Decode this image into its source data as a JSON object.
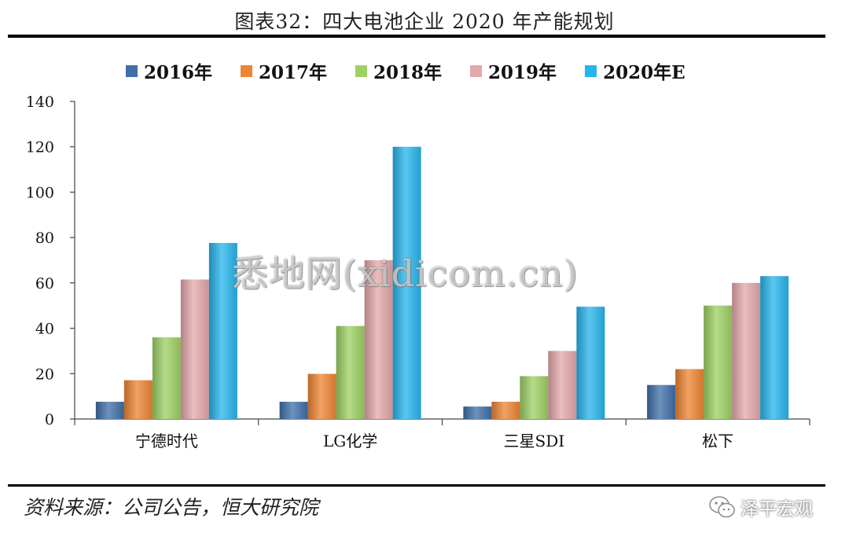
{
  "figure": {
    "title": "图表32：四大电池企业 2020 年产能规划",
    "source": "资料来源：公司公告，恒大研究院",
    "watermark": "悉地网(xidicom.cn)",
    "brand": "泽平宏观"
  },
  "chart_data": {
    "type": "bar",
    "categories": [
      "宁德时代",
      "LG化学",
      "三星SDI",
      "松下"
    ],
    "series": [
      {
        "name": "2016年",
        "values": [
          7.6,
          7.6,
          5.5,
          15
        ],
        "color": "#3f6fa8"
      },
      {
        "name": "2017年",
        "values": [
          17.1,
          19.9,
          7.6,
          22
        ],
        "color": "#ed8533"
      },
      {
        "name": "2018年",
        "values": [
          36,
          41,
          18.9,
          50
        ],
        "color": "#9ed164"
      },
      {
        "name": "2019年",
        "values": [
          61.5,
          70,
          30,
          60
        ],
        "color": "#e3a8aa"
      },
      {
        "name": "2020年E",
        "values": [
          77.6,
          120,
          49.5,
          63
        ],
        "color": "#27b5ec"
      }
    ],
    "ylim": [
      0,
      140
    ],
    "yticks": [
      "0",
      "20",
      "40",
      "60",
      "80",
      "100",
      "120",
      "140"
    ],
    "ytick_values": [
      0,
      20,
      40,
      60,
      80,
      100,
      120,
      140
    ],
    "legend": "top",
    "grid": false
  }
}
